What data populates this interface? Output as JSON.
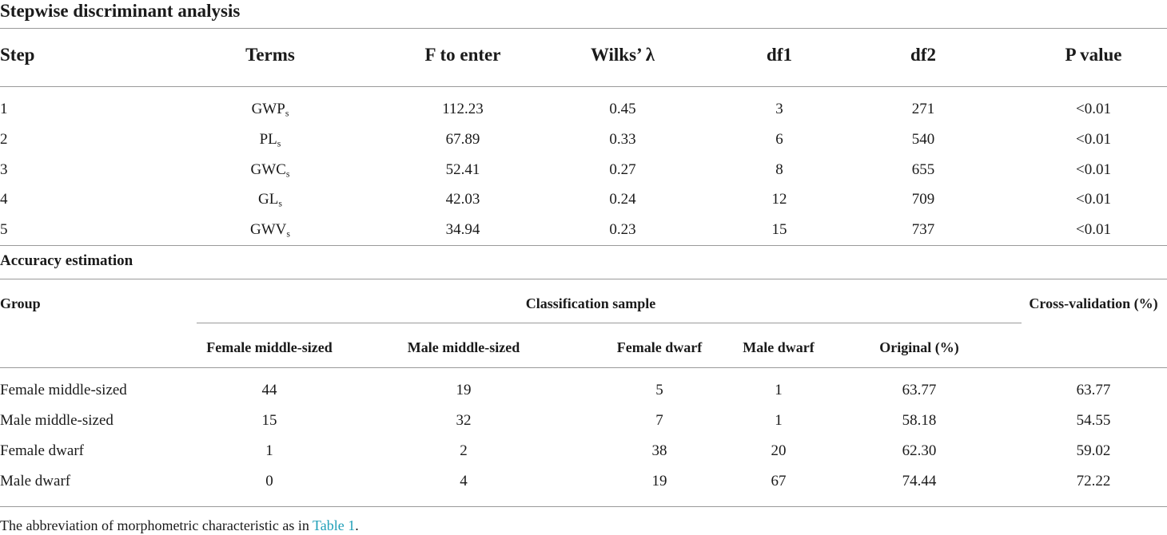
{
  "section1": {
    "title": "Stepwise discriminant analysis",
    "headers": [
      "Step",
      "Terms",
      "F to enter",
      "Wilks’ λ",
      "df1",
      "df2",
      "P value"
    ],
    "rows": [
      {
        "step": "1",
        "term": "GWP",
        "sub": "s",
        "f": "112.23",
        "wilks": "0.45",
        "df1": "3",
        "df2": "271",
        "p": "<0.01"
      },
      {
        "step": "2",
        "term": "PL",
        "sub": "s",
        "f": "67.89",
        "wilks": "0.33",
        "df1": "6",
        "df2": "540",
        "p": "<0.01"
      },
      {
        "step": "3",
        "term": "GWC",
        "sub": "s",
        "f": "52.41",
        "wilks": "0.27",
        "df1": "8",
        "df2": "655",
        "p": "<0.01"
      },
      {
        "step": "4",
        "term": "GL",
        "sub": "s",
        "f": "42.03",
        "wilks": "0.24",
        "df1": "12",
        "df2": "709",
        "p": "<0.01"
      },
      {
        "step": "5",
        "term": "GWV",
        "sub": "s",
        "f": "34.94",
        "wilks": "0.23",
        "df1": "15",
        "df2": "737",
        "p": "<0.01"
      }
    ]
  },
  "section2": {
    "title": "Accuracy estimation",
    "group_header": "Group",
    "classification_header": "Classification sample",
    "cross_header": "Cross-validation (%)",
    "sub_headers": [
      "Female middle-sized",
      "Male middle-sized",
      "Female dwarf",
      "Male dwarf",
      "Original (%)"
    ],
    "rows": [
      {
        "group": "Female middle-sized",
        "values": [
          "44",
          "19",
          "5",
          "1",
          "63.77"
        ],
        "cv": "63.77"
      },
      {
        "group": "Male middle-sized",
        "values": [
          "15",
          "32",
          "7",
          "1",
          "58.18"
        ],
        "cv": "54.55"
      },
      {
        "group": "Female dwarf",
        "values": [
          "1",
          "2",
          "38",
          "20",
          "62.30"
        ],
        "cv": "59.02"
      },
      {
        "group": "Male dwarf",
        "values": [
          "0",
          "4",
          "19",
          "67",
          "74.44"
        ],
        "cv": "72.22"
      }
    ]
  },
  "footnote": {
    "text": "The abbreviation of morphometric characteristic as in ",
    "link": "Table 1",
    "end": "."
  }
}
